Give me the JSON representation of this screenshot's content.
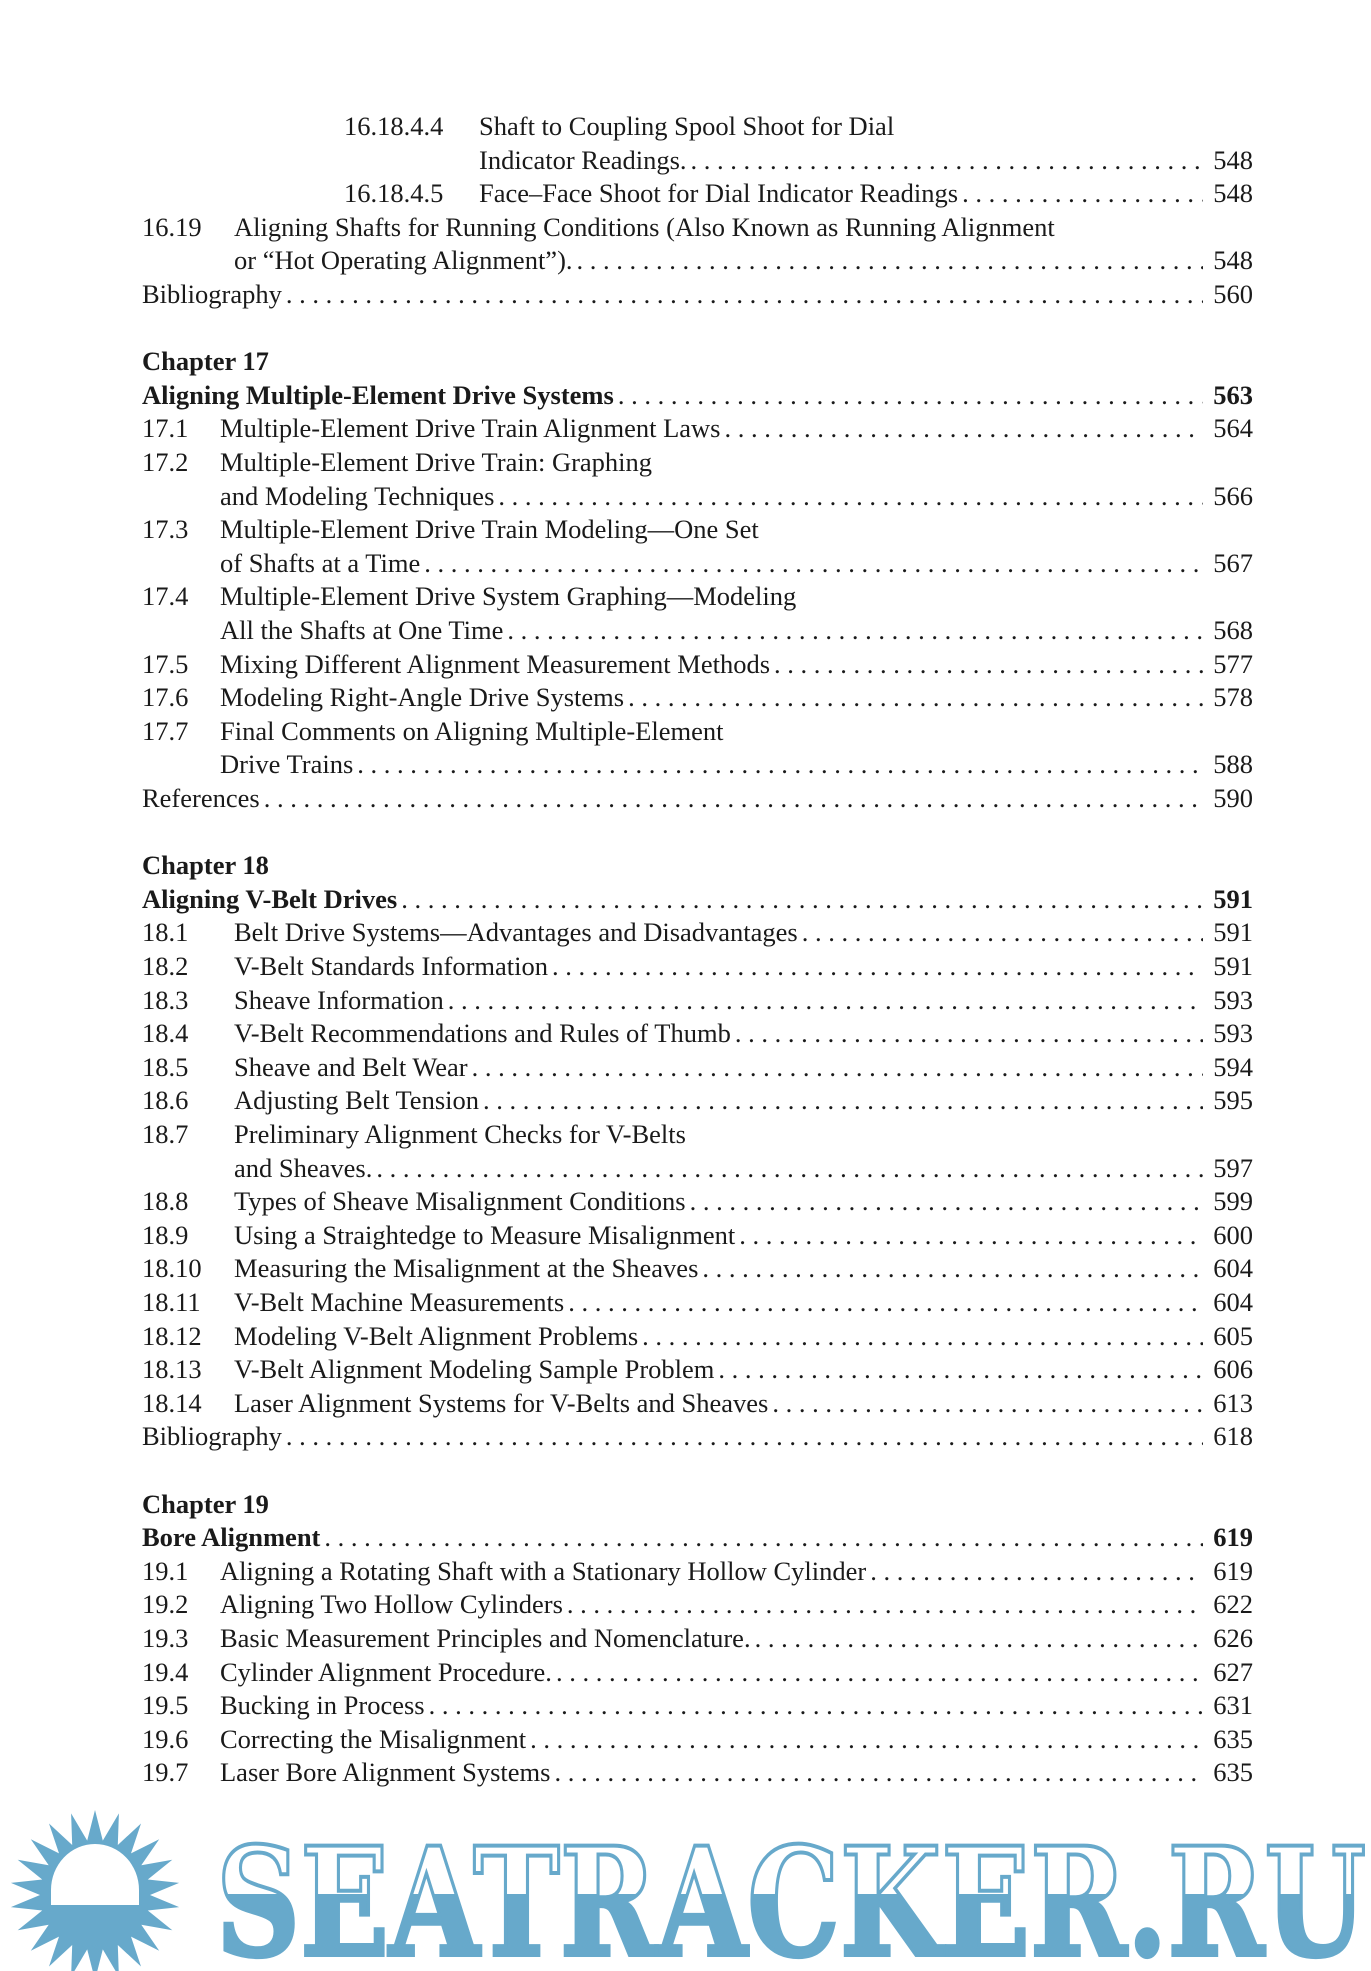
{
  "toc": {
    "groups": [
      {
        "chapter_label": "",
        "chapter_title": "",
        "entries": [
          {
            "num": "16.18.4.4",
            "deep": true,
            "lines": [
              "Shaft to Coupling Spool Shoot for Dial",
              "Indicator Readings."
            ],
            "page": "548"
          },
          {
            "num": "16.18.4.5",
            "deep": true,
            "lines": [
              "Face–Face Shoot for Dial Indicator Readings"
            ],
            "page": "548"
          },
          {
            "num": "16.19",
            "lines": [
              "Aligning Shafts for Running Conditions (Also Known as Running Alignment",
              "or “Hot Operating Alignment”)."
            ],
            "page": "548"
          },
          {
            "num": "",
            "lines": [
              "Bibliography"
            ],
            "page": "560"
          }
        ]
      },
      {
        "chapter_label": "Chapter 17",
        "chapter_title": "Aligning Multiple-Element Drive Systems",
        "chapter_page": "563",
        "entries": [
          {
            "num": "17.1",
            "lines": [
              "Multiple-Element Drive Train Alignment Laws"
            ],
            "page": "564"
          },
          {
            "num": "17.2",
            "lines": [
              "Multiple-Element Drive Train: Graphing",
              "and Modeling Techniques"
            ],
            "page": "566"
          },
          {
            "num": "17.3",
            "lines": [
              "Multiple-Element Drive Train Modeling—One Set",
              "of Shafts at a Time"
            ],
            "page": "567"
          },
          {
            "num": "17.4",
            "lines": [
              "Multiple-Element Drive System Graphing—Modeling",
              "All the Shafts at One Time"
            ],
            "page": "568"
          },
          {
            "num": "17.5",
            "lines": [
              "Mixing Different Alignment Measurement Methods"
            ],
            "page": "577"
          },
          {
            "num": "17.6",
            "lines": [
              "Modeling Right-Angle Drive Systems"
            ],
            "page": "578"
          },
          {
            "num": "17.7",
            "lines": [
              "Final Comments on Aligning Multiple-Element",
              "Drive Trains"
            ],
            "page": "588"
          },
          {
            "num": "",
            "lines": [
              "References"
            ],
            "page": "590"
          }
        ]
      },
      {
        "chapter_label": "Chapter 18",
        "chapter_title": "Aligning V-Belt Drives",
        "chapter_page": "591",
        "entries": [
          {
            "num": "18.1",
            "lines": [
              "Belt Drive Systems—Advantages and Disadvantages"
            ],
            "page": "591"
          },
          {
            "num": "18.2",
            "lines": [
              "V-Belt Standards Information"
            ],
            "page": "591"
          },
          {
            "num": "18.3",
            "lines": [
              "Sheave Information"
            ],
            "page": "593"
          },
          {
            "num": "18.4",
            "lines": [
              "V-Belt Recommendations and Rules of Thumb"
            ],
            "page": "593"
          },
          {
            "num": "18.5",
            "lines": [
              "Sheave and Belt Wear"
            ],
            "page": "594"
          },
          {
            "num": "18.6",
            "lines": [
              "Adjusting Belt Tension"
            ],
            "page": "595"
          },
          {
            "num": "18.7",
            "lines": [
              "Preliminary Alignment Checks for V-Belts",
              "and Sheaves."
            ],
            "page": "597"
          },
          {
            "num": "18.8",
            "lines": [
              "Types of Sheave Misalignment Conditions"
            ],
            "page": "599"
          },
          {
            "num": "18.9",
            "lines": [
              "Using a Straightedge to Measure Misalignment"
            ],
            "page": "600"
          },
          {
            "num": "18.10",
            "lines": [
              "Measuring the Misalignment at the Sheaves"
            ],
            "page": "604"
          },
          {
            "num": "18.11",
            "lines": [
              "V-Belt Machine Measurements"
            ],
            "page": "604"
          },
          {
            "num": "18.12",
            "lines": [
              "Modeling V-Belt Alignment Problems"
            ],
            "page": "605"
          },
          {
            "num": "18.13",
            "lines": [
              "V-Belt Alignment Modeling Sample Problem"
            ],
            "page": "606"
          },
          {
            "num": "18.14",
            "lines": [
              "Laser Alignment Systems for V-Belts and Sheaves"
            ],
            "page": "613"
          },
          {
            "num": "",
            "lines": [
              "Bibliography"
            ],
            "page": "618"
          }
        ]
      },
      {
        "chapter_label": "Chapter 19",
        "chapter_title": "Bore Alignment",
        "chapter_page": "619",
        "entries": [
          {
            "num": "19.1",
            "lines": [
              "Aligning a Rotating Shaft with a Stationary Hollow Cylinder"
            ],
            "page": "619"
          },
          {
            "num": "19.2",
            "lines": [
              "Aligning Two Hollow Cylinders"
            ],
            "page": "622"
          },
          {
            "num": "19.3",
            "lines": [
              "Basic Measurement Principles and Nomenclature."
            ],
            "page": "626"
          },
          {
            "num": "19.4",
            "lines": [
              "Cylinder Alignment Procedure."
            ],
            "page": "627"
          },
          {
            "num": "19.5",
            "lines": [
              "Bucking in Process"
            ],
            "page": "631"
          },
          {
            "num": "19.6",
            "lines": [
              "Correcting the Misalignment"
            ],
            "page": "635"
          },
          {
            "num": "19.7",
            "lines": [
              "Laser Bore Alignment Systems"
            ],
            "page": "635"
          }
        ]
      }
    ]
  },
  "watermark": {
    "text": "SEATRACKER.RU",
    "icon": "sun-icon",
    "color": "#67a9cb"
  }
}
